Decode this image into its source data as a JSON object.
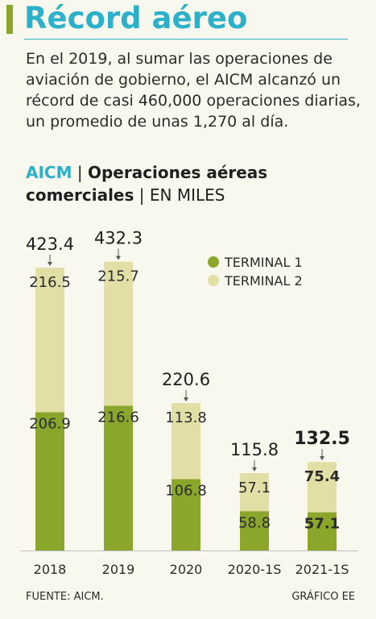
{
  "header": {
    "title": "Récord aéreo",
    "intro": "En el 2019, al sumar las operaciones de aviación de gobierno, el AICM alcanzó un récord de casi 460,000 operaciones diarias, un promedio de unas 1,270 al día.",
    "subtitle_brand": "AICM",
    "subtitle_sep1": " | ",
    "subtitle_bold": "Operaciones aéreas comerciales",
    "subtitle_sep2": " | ",
    "subtitle_unit": "EN MILES"
  },
  "colors": {
    "terminal1": "#8aa62b",
    "terminal2": "#e2dfa6",
    "accent": "#2db0c9",
    "text": "#2b2b2b"
  },
  "chart_data": {
    "type": "bar",
    "stacked": true,
    "categories": [
      "2018",
      "2019",
      "2020",
      "2020-1S",
      "2021-1S"
    ],
    "series": [
      {
        "name": "TERMINAL 1",
        "values": [
          206.9,
          216.6,
          106.8,
          58.8,
          57.1
        ]
      },
      {
        "name": "TERMINAL 2",
        "values": [
          216.5,
          215.7,
          113.8,
          57.1,
          75.4
        ]
      }
    ],
    "totals": [
      423.4,
      432.3,
      220.6,
      115.8,
      132.5
    ],
    "value_labels_t1": [
      "206.9",
      "216.6",
      "106.8",
      "58.8",
      "57.1"
    ],
    "value_labels_t2": [
      "216.5",
      "215.7",
      "113.8",
      "57.1",
      "75.4"
    ],
    "total_labels": [
      "423.4",
      "432.3",
      "220.6",
      "115.8",
      "132.5"
    ],
    "highlight_last": true,
    "legend": [
      "TERMINAL 1",
      "TERMINAL 2"
    ],
    "legend_position": "top-right",
    "ylim": [
      0,
      450
    ],
    "grid": false
  },
  "footer": {
    "source": "FUENTE: AICM.",
    "credit": "GRÁFICO EE"
  }
}
